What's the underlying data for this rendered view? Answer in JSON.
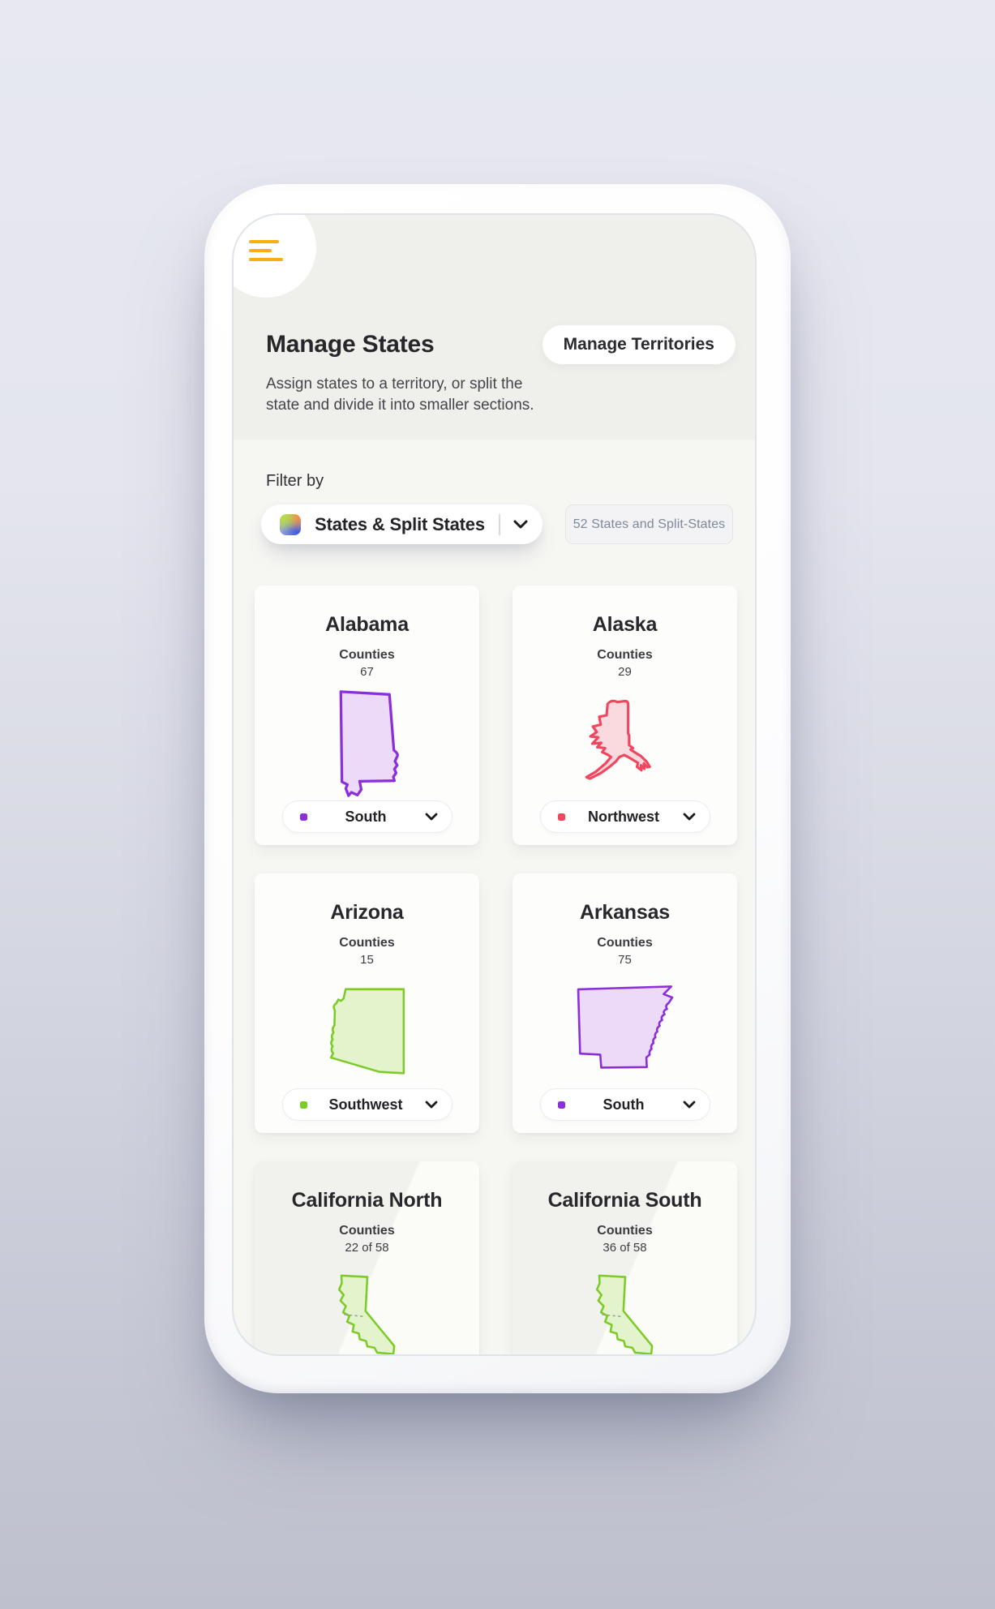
{
  "header": {
    "title": "Manage States",
    "subtitle": "Assign states to a territory, or split the state and divide it into smaller sections.",
    "action_button": "Manage Territories"
  },
  "filter": {
    "label": "Filter by",
    "dropdown_value": "States & Split States",
    "dropdown_icon": "multicolor-gradient-square-icon",
    "count_badge": "52 States and Split-States"
  },
  "colors": {
    "hamburger_accent": "#F6AE12",
    "purple_stroke": "#8B2FD9",
    "purple_fill": "#ECDAF8",
    "red_stroke": "#F2455E",
    "red_fill": "#FAD9DF",
    "green_stroke": "#7CCB27",
    "green_fill": "#E3F4CC",
    "badge_text": "#7E8A9B"
  },
  "cards": [
    {
      "name": "Alabama",
      "counties_label": "Counties",
      "counties": "67",
      "territory": "South",
      "shape": "alabama",
      "stroke": "#8B2FD9",
      "fill": "#ECDAF8",
      "split": false
    },
    {
      "name": "Alaska",
      "counties_label": "Counties",
      "counties": "29",
      "territory": "Northwest",
      "shape": "alaska",
      "stroke": "#F2455E",
      "fill": "#FAD9DF",
      "split": false
    },
    {
      "name": "Arizona",
      "counties_label": "Counties",
      "counties": "15",
      "territory": "Southwest",
      "shape": "arizona",
      "stroke": "#7CCB27",
      "fill": "#E3F4CC",
      "split": false
    },
    {
      "name": "Arkansas",
      "counties_label": "Counties",
      "counties": "75",
      "territory": "South",
      "shape": "arkansas",
      "stroke": "#8B2FD9",
      "fill": "#ECDAF8",
      "split": false
    },
    {
      "name": "California North",
      "counties_label": "Counties",
      "counties": "22 of 58",
      "territory": null,
      "shape": "california",
      "stroke": "#7CCB27",
      "fill": "#E3F4CC",
      "split": true
    },
    {
      "name": "California South",
      "counties_label": "Counties",
      "counties": "36 of 58",
      "territory": null,
      "shape": "california",
      "stroke": "#7CCB27",
      "fill": "#E3F4CC",
      "split": true
    }
  ]
}
